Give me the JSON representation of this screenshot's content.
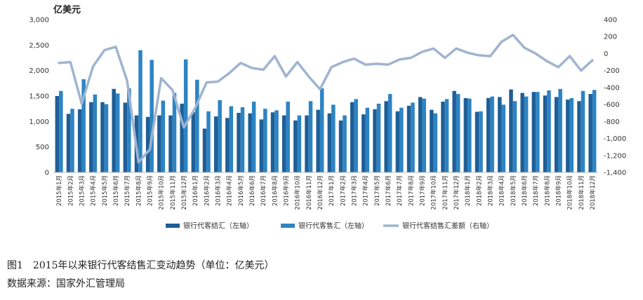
{
  "chart_data": {
    "type": "bar",
    "unit_label": "亿美元",
    "categories": [
      "2015年1月",
      "2015年2月",
      "2015年3月",
      "2015年4月",
      "2015年5月",
      "2015年6月",
      "2015年7月",
      "2015年8月",
      "2015年9月",
      "2015年10月",
      "2015年11月",
      "2015年12月",
      "2016年1月",
      "2016年2月",
      "2016年3月",
      "2016年4月",
      "2016年5月",
      "2016年6月",
      "2016年7月",
      "2016年8月",
      "2016年9月",
      "2016年10月",
      "2016年11月",
      "2016年12月",
      "2017年1月",
      "2017年2月",
      "2017年3月",
      "2017年4月",
      "2017年5月",
      "2017年6月",
      "2017年7月",
      "2017年8月",
      "2017年9月",
      "2017年10月",
      "2017年11月",
      "2017年12月",
      "2018年1月",
      "2018年2月",
      "2018年3月",
      "2018年4月",
      "2018年5月",
      "2018年6月",
      "2018年7月",
      "2018年8月",
      "2018年9月",
      "2018年10月",
      "2018年11月",
      "2018年12月"
    ],
    "series": [
      {
        "name": "银行代客结汇（左轴）",
        "axis": "left",
        "kind": "bar",
        "color": "#1f5e96",
        "values": [
          1500,
          1150,
          1240,
          1380,
          1380,
          1640,
          1370,
          1120,
          1090,
          1120,
          1120,
          1350,
          1180,
          860,
          1100,
          1070,
          1170,
          1160,
          1040,
          1180,
          1120,
          1020,
          1120,
          1230,
          1160,
          1020,
          1380,
          1140,
          1240,
          1400,
          1200,
          1310,
          1480,
          1230,
          1390,
          1600,
          1460,
          1190,
          1460,
          1480,
          1630,
          1560,
          1580,
          1510,
          1480,
          1430,
          1400,
          1540
        ]
      },
      {
        "name": "银行代客售汇（左轴）",
        "axis": "left",
        "kind": "bar",
        "color": "#2d84c4",
        "values": [
          1600,
          1250,
          1830,
          1530,
          1340,
          1550,
          1650,
          2400,
          2210,
          1410,
          1560,
          2220,
          1820,
          1200,
          1420,
          1300,
          1280,
          1390,
          1250,
          1220,
          1390,
          1120,
          1400,
          1650,
          1330,
          1120,
          1440,
          1270,
          1350,
          1540,
          1270,
          1370,
          1450,
          1160,
          1440,
          1540,
          1450,
          1200,
          1490,
          1330,
          1400,
          1490,
          1580,
          1610,
          1640,
          1460,
          1600,
          1620
        ]
      },
      {
        "name": "银行代客结售汇差额（右轴）",
        "axis": "right",
        "kind": "line",
        "color": "#9fb4d0",
        "values": [
          -110,
          -100,
          -590,
          -150,
          40,
          80,
          -320,
          -1280,
          -1130,
          -290,
          -430,
          -870,
          -640,
          -340,
          -330,
          -230,
          -110,
          -170,
          -190,
          -30,
          -270,
          -100,
          -270,
          -420,
          -160,
          -100,
          -60,
          -130,
          -120,
          -130,
          -70,
          -50,
          20,
          60,
          -50,
          60,
          10,
          -20,
          -30,
          140,
          220,
          70,
          0,
          -90,
          -160,
          -30,
          -200,
          -80
        ]
      }
    ],
    "left_axis": {
      "min": 0,
      "max": 3000,
      "step": 500,
      "tick_labels": [
        "0",
        "500",
        "1,000",
        "1,500",
        "2,000",
        "2,500",
        "3,000"
      ]
    },
    "right_axis": {
      "min": -1400,
      "max": 400,
      "step": 200,
      "tick_labels": [
        "-1,400",
        "-1,200",
        "-1,000",
        "-800",
        "-600",
        "-400",
        "-200",
        "0",
        "200",
        "400"
      ]
    },
    "grid": false,
    "legend_position": "bottom"
  },
  "caption": {
    "figure_title": "图1　2015年以来银行代客结售汇变动趋势（单位：亿美元）",
    "source": "数据来源：国家外汇管理局"
  }
}
